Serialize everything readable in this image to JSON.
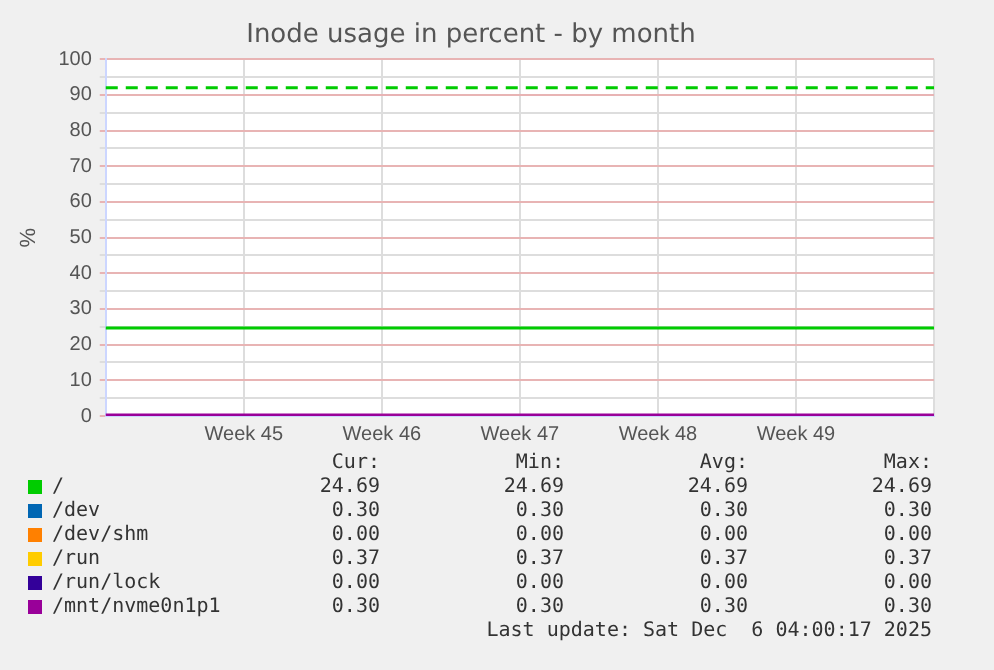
{
  "chart_data": {
    "type": "line",
    "title": "Inode usage in percent - by month",
    "ylabel": "%",
    "categories": [
      null,
      "Week 45",
      "Week 46",
      "Week 47",
      "Week 48",
      "Week 49",
      null
    ],
    "ylim": [
      0,
      100
    ],
    "yticks": [
      0,
      {
        "value": 5,
        "label": null
      },
      10,
      {
        "value": 15,
        "label": null
      },
      20,
      {
        "value": 25,
        "label": null
      },
      30,
      {
        "value": 35,
        "label": null
      },
      40,
      {
        "value": 45,
        "label": null
      },
      50,
      {
        "value": 55,
        "label": null
      },
      60,
      {
        "value": 65,
        "label": null
      },
      70,
      {
        "value": 75,
        "label": null
      },
      80,
      {
        "value": 85,
        "label": null
      },
      90,
      {
        "value": 95,
        "label": null
      },
      100
    ],
    "series": [
      {
        "name": "/",
        "color": "#00cc00",
        "values": [
          24.69,
          24.69,
          24.69,
          24.69,
          24.69,
          24.69,
          24.69
        ]
      },
      {
        "name": "/dev",
        "color": "#0066b3",
        "values": [
          null,
          null,
          null,
          null,
          null,
          null,
          null
        ]
      },
      {
        "name": "/dev/shm",
        "color": "#ff8000",
        "values": [
          null,
          null,
          null,
          null,
          null,
          null,
          null
        ]
      },
      {
        "name": "/run",
        "color": "#ffcc00",
        "values": [
          null,
          null,
          null,
          null,
          null,
          null,
          null
        ]
      },
      {
        "name": "/run/lock",
        "color": "#330099",
        "values": [
          null,
          null,
          null,
          null,
          null,
          null,
          null
        ]
      },
      {
        "name": "/mnt/nvme0n1p1",
        "color": "#990099",
        "values": [
          0.3,
          0.3,
          0.3,
          0.3,
          0.3,
          0.3,
          0.3
        ]
      }
    ],
    "ref_lines": [
      {
        "axis": "y",
        "value": 92,
        "color": "#00cc00",
        "line_style": "dashed"
      }
    ],
    "grid": true,
    "legend": "bottom",
    "marker": "none",
    "line_style": "solid",
    "annotations": [
      "Cur:",
      "Min:",
      "Avg:",
      "Max:",
      "24.69",
      "24.69",
      "24.69",
      "24.69",
      "0.30",
      "0.30",
      "0.30",
      "0.30",
      "0.00",
      "0.00",
      "0.00",
      "0.00",
      "0.37",
      "0.37",
      "0.37",
      "0.37",
      "0.00",
      "0.00",
      "0.00",
      "0.00",
      "0.30",
      "0.30",
      "0.30",
      "0.30",
      "Last update: Sat Dec  6 04:00:17 2025"
    ]
  }
}
